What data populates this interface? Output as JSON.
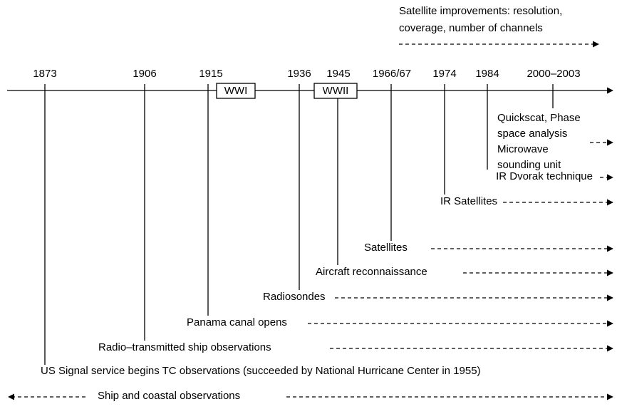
{
  "header": {
    "lines": [
      "Satellite improvements: resolution,",
      "coverage, number of channels"
    ]
  },
  "years": [
    {
      "label": "1873"
    },
    {
      "label": "1906"
    },
    {
      "label": "1915"
    },
    {
      "label": "1936"
    },
    {
      "label": "1945"
    },
    {
      "label": "1966/67"
    },
    {
      "label": "1974"
    },
    {
      "label": "1984"
    },
    {
      "label": "2000–2003"
    }
  ],
  "wars": [
    {
      "label": "WWI"
    },
    {
      "label": "WWII"
    }
  ],
  "events": [
    {
      "lines": [
        "Quickscat, Phase",
        "space analysis",
        "Microwave",
        "sounding unit"
      ]
    },
    {
      "lines": [
        "IR Dvorak technique"
      ]
    },
    {
      "lines": [
        "IR Satellites"
      ]
    },
    {
      "lines": [
        "Satellites"
      ]
    },
    {
      "lines": [
        "Aircraft reconnaissance"
      ]
    },
    {
      "lines": [
        "Radiosondes"
      ]
    },
    {
      "lines": [
        "Panama canal opens"
      ]
    },
    {
      "lines": [
        "Radio–transmitted ship observations"
      ]
    },
    {
      "lines": [
        "US Signal service begins TC observations (succeeded by National Hurricane Center in 1955)"
      ]
    },
    {
      "lines": [
        "Ship and coastal observations"
      ]
    }
  ]
}
